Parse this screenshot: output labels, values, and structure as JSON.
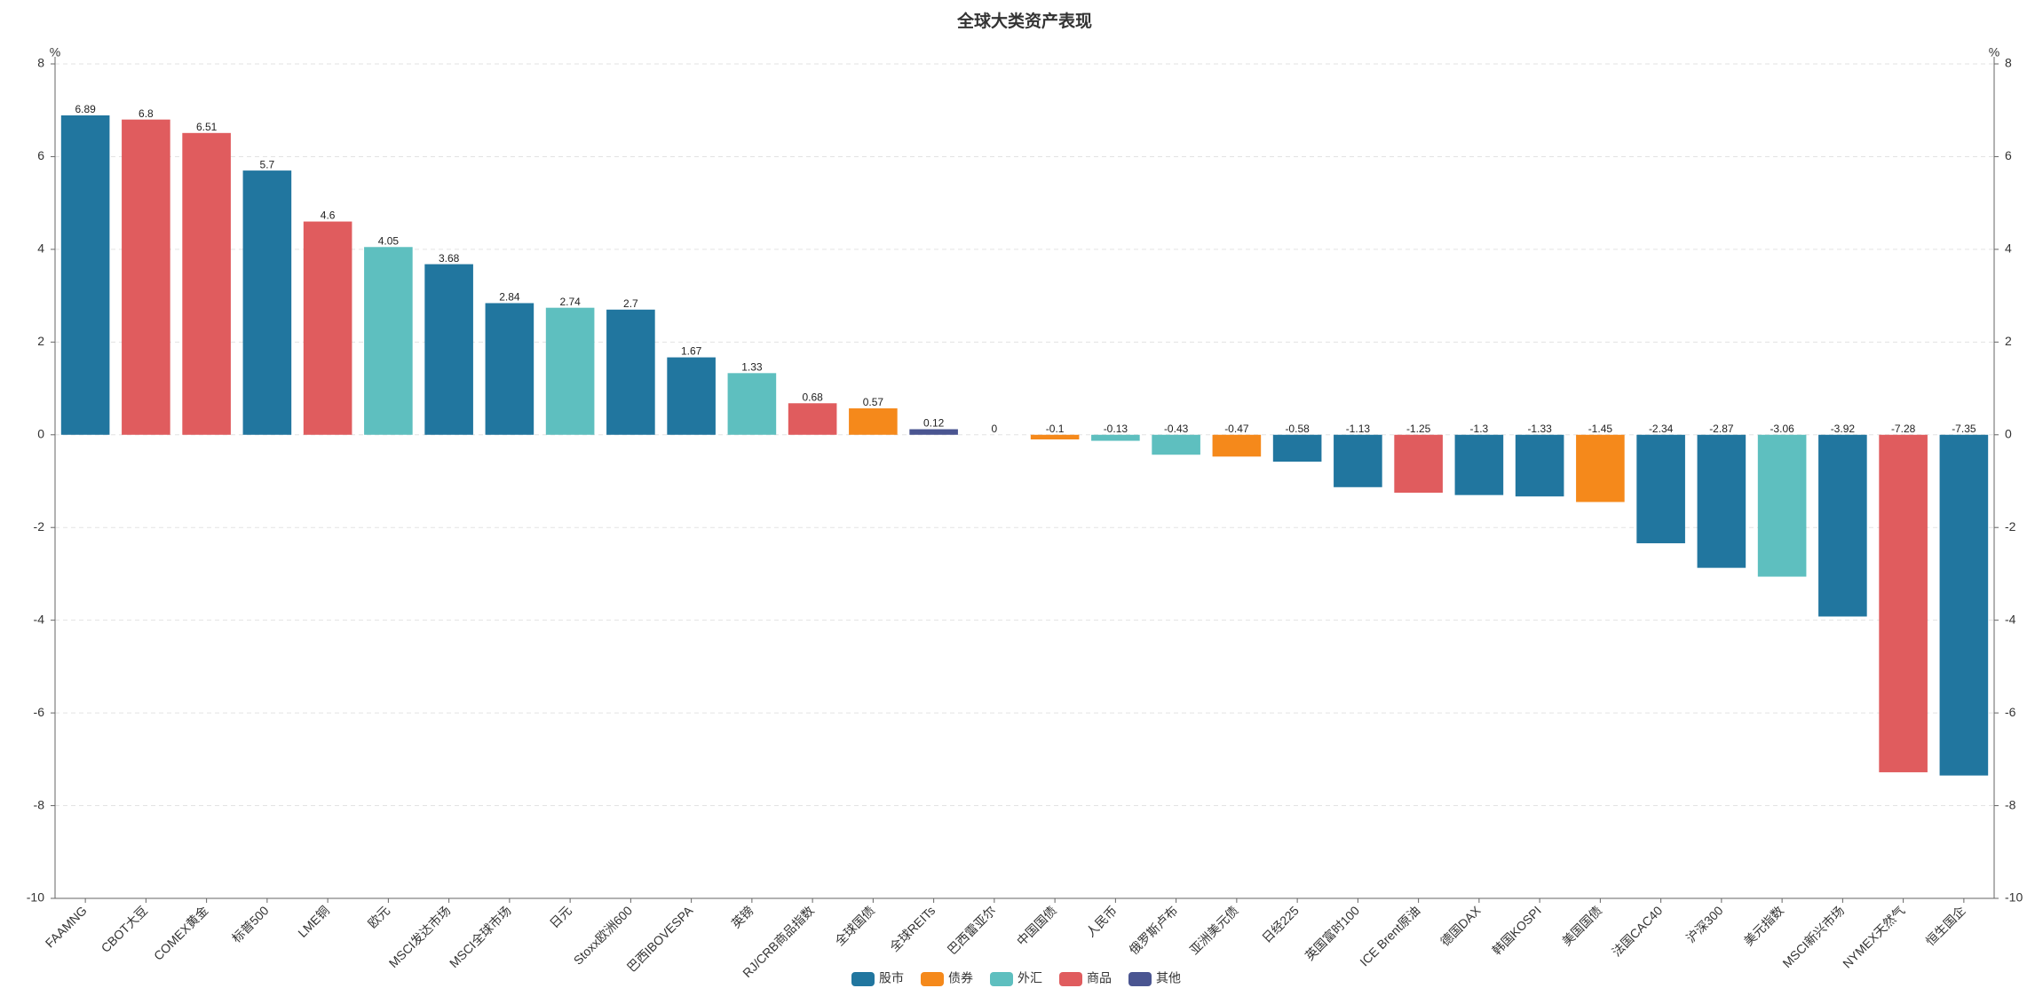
{
  "chart_data": {
    "type": "bar",
    "title": "全球大类资产表现",
    "categories": [
      "FAAMNG",
      "CBOT大豆",
      "COMEX黄金",
      "标普500",
      "LME铜",
      "欧元",
      "MSCI发达市场",
      "MSCI全球市场",
      "日元",
      "Stoxx欧洲600",
      "巴西IBOVESPA",
      "英镑",
      "RJ/CRB商品指数",
      "全球国债",
      "全球REITs",
      "巴西雷亚尔",
      "中国国债",
      "人民币",
      "俄罗斯卢布",
      "亚洲美元债",
      "日经225",
      "英国富时100",
      "ICE Brent原油",
      "德国DAX",
      "韩国KOSPI",
      "美国国债",
      "法国CAC40",
      "沪深300",
      "美元指数",
      "MSCI新兴市场",
      "NYMEX天然气",
      "恒生国企"
    ],
    "series": [
      {
        "name": "股市",
        "color": "#21769f",
        "values": [
          6.89,
          null,
          null,
          5.7,
          null,
          null,
          3.68,
          2.84,
          null,
          2.7,
          1.67,
          null,
          null,
          null,
          null,
          null,
          null,
          null,
          null,
          null,
          -0.58,
          -1.13,
          null,
          -1.3,
          -1.33,
          null,
          -2.34,
          -2.87,
          null,
          -3.92,
          null,
          -7.35
        ]
      },
      {
        "name": "债券",
        "color": "#f5891b",
        "values": [
          null,
          null,
          null,
          null,
          null,
          null,
          null,
          null,
          null,
          null,
          null,
          null,
          null,
          0.57,
          null,
          null,
          -0.1,
          null,
          null,
          -0.47,
          null,
          null,
          null,
          null,
          null,
          -1.45,
          null,
          null,
          null,
          null,
          null,
          null
        ]
      },
      {
        "name": "外汇",
        "color": "#5ebfbf",
        "values": [
          null,
          null,
          null,
          null,
          null,
          4.05,
          null,
          null,
          2.74,
          null,
          null,
          1.33,
          null,
          null,
          null,
          0,
          null,
          -0.13,
          -0.43,
          null,
          null,
          null,
          null,
          null,
          null,
          null,
          null,
          null,
          -3.06,
          null,
          null,
          null
        ]
      },
      {
        "name": "商品",
        "color": "#e05c5e",
        "values": [
          null,
          6.8,
          6.51,
          null,
          4.6,
          null,
          null,
          null,
          null,
          null,
          null,
          null,
          0.68,
          null,
          null,
          null,
          null,
          null,
          null,
          null,
          null,
          null,
          -1.25,
          null,
          null,
          null,
          null,
          null,
          null,
          null,
          -7.28,
          null
        ]
      },
      {
        "name": "其他",
        "color": "#4a5591",
        "values": [
          null,
          null,
          null,
          null,
          null,
          null,
          null,
          null,
          null,
          null,
          null,
          null,
          null,
          null,
          0.12,
          null,
          null,
          null,
          null,
          null,
          null,
          null,
          null,
          null,
          null,
          null,
          null,
          null,
          null,
          null,
          null,
          null
        ]
      }
    ],
    "y_axis_label": "%",
    "y2_axis_label": "%",
    "ylim": [
      -10,
      8
    ],
    "yticks": [
      -10,
      -8,
      -6,
      -4,
      -2,
      0,
      2,
      4,
      6,
      8
    ],
    "y2lim": [
      -10,
      8
    ],
    "y2ticks": [
      -10,
      -8,
      -6,
      -4,
      -2,
      0,
      2,
      4,
      6,
      8
    ],
    "grid": true,
    "legend": "bottom"
  }
}
